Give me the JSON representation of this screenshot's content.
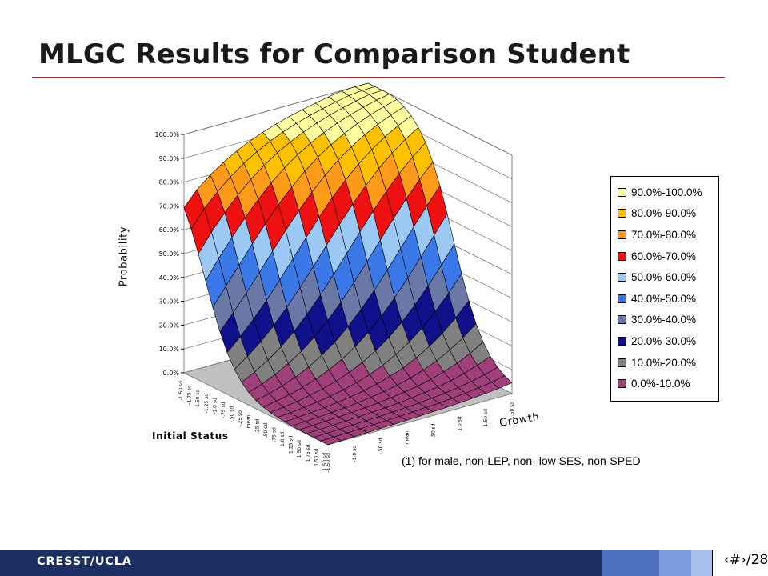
{
  "slide": {
    "title": "MLGC Results for Comparison Student",
    "footer_label": "CRESST/UCLA",
    "page_number": "‹#›/28"
  },
  "chart_data": {
    "type": "surface",
    "zlabel": "Probability",
    "xlabel": "Initial Status",
    "ylabel": "Growth",
    "z_ticks": [
      "0.0%",
      "10.0%",
      "20.0%",
      "30.0%",
      "40.0%",
      "50.0%",
      "60.0%",
      "70.0%",
      "80.0%",
      "90.0%",
      "100.0%"
    ],
    "zlim": [
      0,
      100
    ],
    "initial_status_ticks": [
      "-1.50 sd",
      "-1.75 sd",
      "-1.50 sd",
      "-1.25 sd",
      "-1.0 sd",
      "-.75 sd",
      "-.50 sd",
      "-.25 sd",
      "mean",
      ".25 sd",
      ".50 sd",
      ".75 sd",
      "1.0 sd",
      "1.25 sd",
      "1.50 sd",
      "1.75 sd",
      "1.50 sd",
      "1.50 sd"
    ],
    "growth_ticks": [
      "-1.50 sd",
      "-1.0 sd",
      "-.50 sd",
      "mean",
      ".50 sd",
      "1.0 sd",
      "1.50 sd",
      "1.50 sd"
    ],
    "legend": [
      {
        "label": "90.0%-100.0%",
        "color": "#ffffa0"
      },
      {
        "label": "80.0%-90.0%",
        "color": "#ffc000"
      },
      {
        "label": "70.0%-80.0%",
        "color": "#ff9a1a"
      },
      {
        "label": "60.0%-70.0%",
        "color": "#ee1111"
      },
      {
        "label": "50.0%-60.0%",
        "color": "#9cc8f4"
      },
      {
        "label": "40.0%-50.0%",
        "color": "#3a78e8"
      },
      {
        "label": "30.0%-40.0%",
        "color": "#6a78a8"
      },
      {
        "label": "20.0%-30.0%",
        "color": "#10108a"
      },
      {
        "label": "10.0%-20.0%",
        "color": "#808080"
      },
      {
        "label": "0.0%-10.0%",
        "color": "#a0407a"
      }
    ],
    "legend_placement": "right",
    "grid": true,
    "note": "(1) for male, non-LEP, non- low SES, non-SPED"
  },
  "theme": {
    "footer_dark": "#1e2f63",
    "footer_mid": "#4f6fbf",
    "footer_light": "#a9c0ef",
    "title_rule": "#9a2a2a",
    "floor": "#c0c0c0"
  }
}
